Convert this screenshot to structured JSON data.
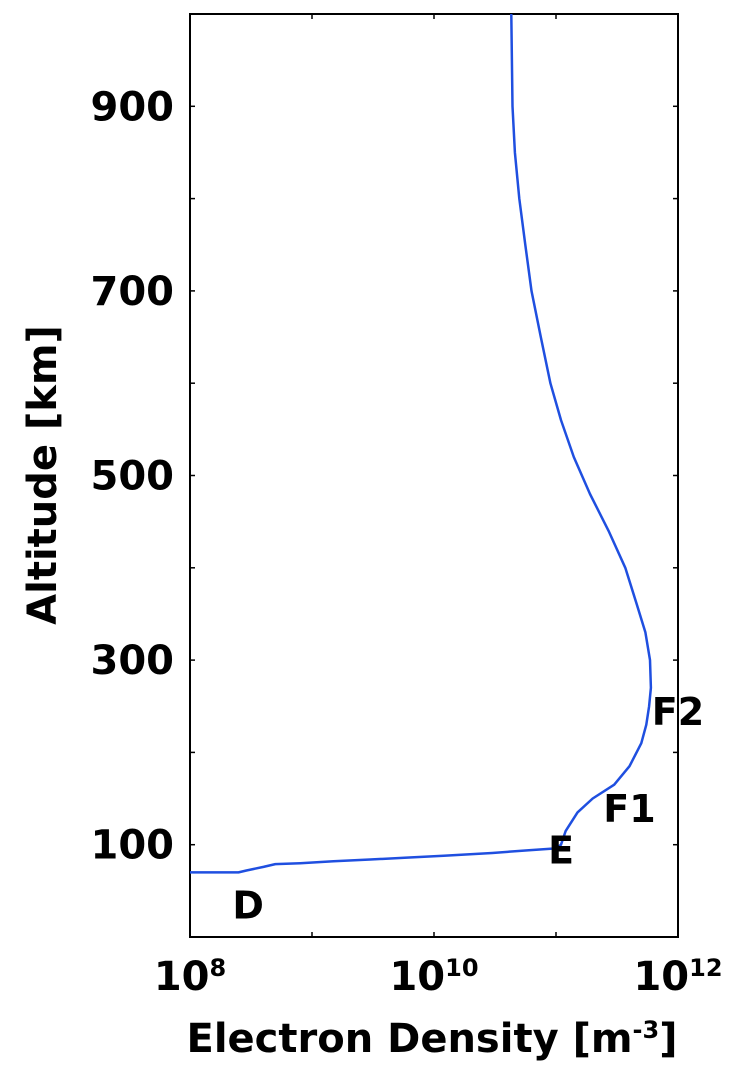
{
  "chart_data": {
    "type": "line",
    "title": "",
    "xlabel": "Electron Density [m",
    "xlabel_sup": "-3",
    "xlabel_end": "]",
    "ylabel": "Altitude [km]",
    "x_scale": "log",
    "xlim": [
      100000000,
      1000000000000
    ],
    "ylim": [
      0,
      1000
    ],
    "grid": false,
    "x_ticks": [
      {
        "base": "10",
        "exp": "8"
      },
      {
        "base": "10",
        "exp": "10"
      },
      {
        "base": "10",
        "exp": "12"
      }
    ],
    "y_ticks": [
      "900",
      "700",
      "500",
      "300",
      "100"
    ],
    "series": [
      {
        "color": "#1f4fe0",
        "x": [
          100000000,
          250000000,
          290000000,
          400000000,
          500000000,
          800000000,
          1500000000,
          3000000000,
          6000000000,
          12000000000,
          30000000000,
          60000000000,
          100000000000,
          110000000000,
          120000000000,
          150000000000,
          200000000000,
          300000000000,
          400000000000,
          500000000000,
          550000000000,
          580000000000,
          600000000000,
          590000000000,
          540000000000,
          460000000000,
          370000000000,
          270000000000,
          190000000000,
          140000000000,
          110000000000,
          90000000000,
          75000000000,
          63000000000,
          56000000000,
          50000000000,
          46000000000,
          44000000000,
          43000000000
        ],
        "y": [
          70,
          70,
          72,
          76,
          79,
          80,
          82,
          84,
          86,
          88,
          91,
          94,
          96,
          100,
          115,
          135,
          150,
          165,
          185,
          210,
          230,
          250,
          270,
          300,
          330,
          360,
          400,
          440,
          480,
          520,
          560,
          600,
          650,
          700,
          750,
          800,
          850,
          900,
          1000
        ]
      }
    ],
    "annotations": [
      {
        "text": "D",
        "x": 300000000,
        "y": 35
      },
      {
        "text": "E",
        "x": 110000000000,
        "y": 95
      },
      {
        "text": "F1",
        "x": 400000000000,
        "y": 140
      },
      {
        "text": "F2",
        "x": 1000000000000,
        "y": 245
      }
    ]
  }
}
